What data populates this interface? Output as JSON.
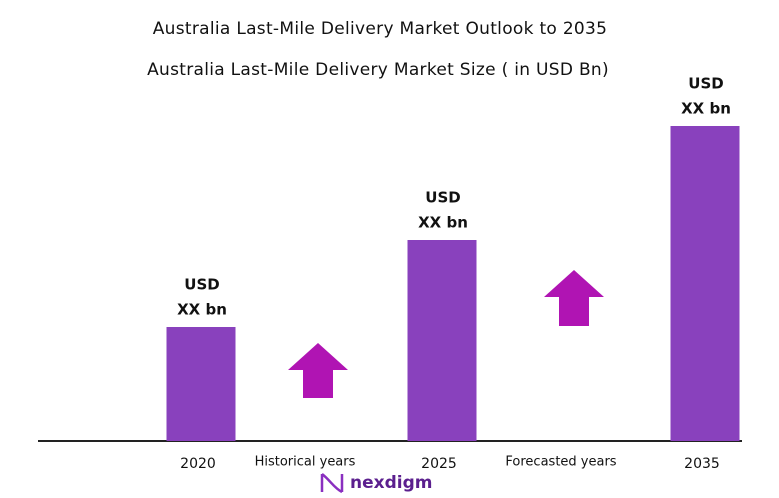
{
  "chart_data": {
    "type": "bar",
    "title": "Australia Last-Mile Delivery Market Outlook to 2035",
    "subtitle": "Australia Last-Mile Delivery  Market Size  ( in USD Bn)",
    "categories": [
      "2020",
      "2025",
      "2035"
    ],
    "values": [
      114,
      201,
      315
    ],
    "value_labels": [
      [
        "USD",
        "XX bn"
      ],
      [
        "USD",
        "XX bn"
      ],
      [
        "USD",
        "XX bn"
      ]
    ],
    "color": "#8941bd",
    "ylim": [
      0,
      330
    ],
    "annotations": [
      "Historical years",
      "Forecasted years"
    ],
    "logo": "nexdigm"
  }
}
